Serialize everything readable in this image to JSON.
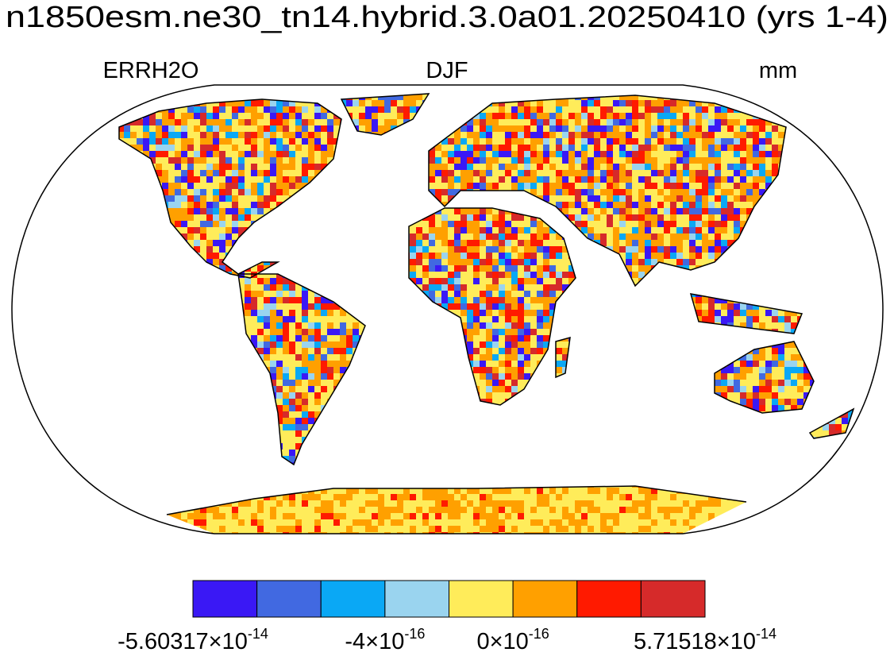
{
  "title": "n1850esm.ne30_tn14.hybrid.3.0a01.20250410 (yrs 1-4)",
  "left_label": "ERRH2O",
  "center_label": "DJF",
  "right_label": "mm",
  "colorbar": {
    "colors": [
      "#3a18f5",
      "#4169e1",
      "#0aa8f5",
      "#9ad4ef",
      "#ffec5a",
      "#ffa000",
      "#ff1a00",
      "#d62a2a"
    ],
    "labels": [
      {
        "text": "-5.60317×10",
        "exponent": "-14"
      },
      null,
      null,
      {
        "text": "-4×10",
        "exponent": "-16"
      },
      null,
      {
        "text": "0×10",
        "exponent": "-16"
      },
      null,
      null,
      {
        "text": "5.71518×10",
        "exponent": "-14"
      }
    ]
  }
}
